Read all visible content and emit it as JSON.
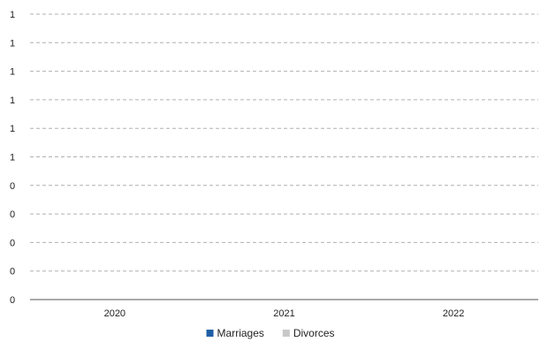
{
  "chart_data": {
    "type": "bar",
    "categories": [
      "2020",
      "2021",
      "2022"
    ],
    "series": [
      {
        "name": "Marriages",
        "values": [
          0,
          0,
          0
        ],
        "color": "#1f5fa6"
      },
      {
        "name": "Divorces",
        "values": [
          0,
          0,
          0
        ],
        "color": "#c8c8c8"
      }
    ],
    "y_tick_labels": [
      "0",
      "0",
      "0",
      "0",
      "0",
      "1",
      "1",
      "1",
      "1",
      "1",
      "1"
    ],
    "ylim": [
      0,
      1
    ],
    "grid": true,
    "legend_position": "bottom",
    "title": "",
    "xlabel": "",
    "ylabel": ""
  }
}
